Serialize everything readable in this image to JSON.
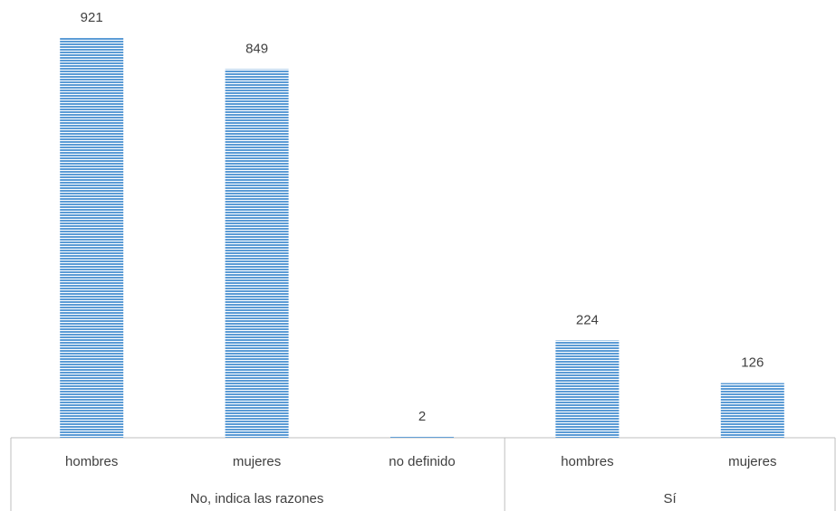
{
  "chart_data": {
    "type": "bar",
    "color": "#5b9bd5",
    "groups": [
      {
        "name": "No, indica las razones",
        "categories": [
          "hombres",
          "mujeres",
          "no definido"
        ],
        "values": [
          921,
          849,
          2
        ]
      },
      {
        "name": "Sí",
        "categories": [
          "hombres",
          "mujeres"
        ],
        "values": [
          224,
          126
        ]
      }
    ]
  }
}
